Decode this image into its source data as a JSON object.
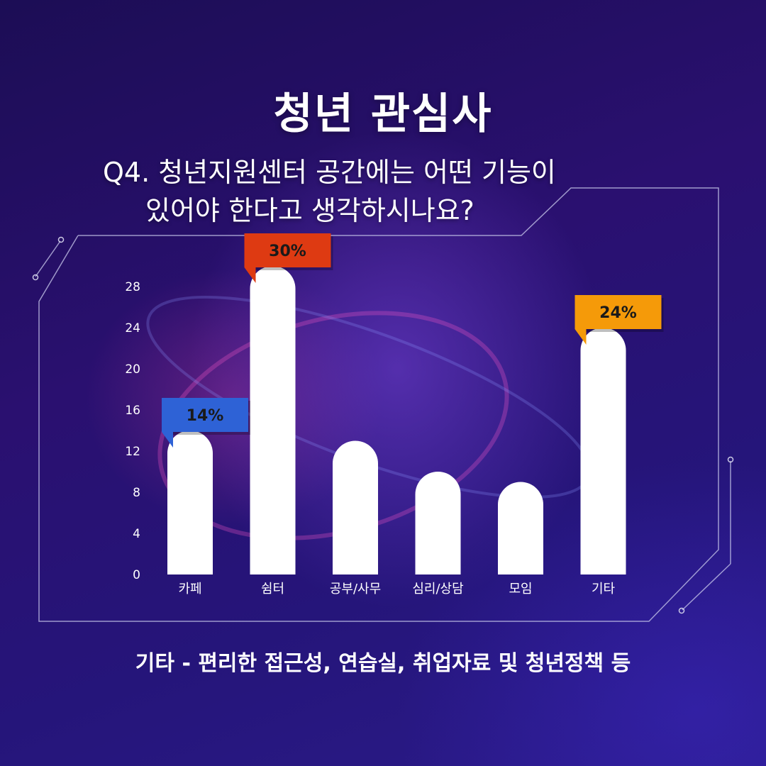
{
  "title": "청년 관심사",
  "question": {
    "line1": "Q4. 청년지원센터 공간에는 어떤 기능이",
    "line2": "있어야 한다고 생각하시나요?"
  },
  "footnote": "기타 - 편리한 접근성, 연습실, 취업자료 및 청년정책 등",
  "colors": {
    "bar": "#ffffff",
    "badge_cafe": "#2e62d6",
    "badge_shelter": "#de3a12",
    "badge_other": "#f59a09"
  },
  "chart_data": {
    "type": "bar",
    "categories": [
      "카페",
      "쉼터",
      "공부/사무",
      "심리/상담",
      "모임",
      "기타"
    ],
    "values": [
      14,
      30,
      13,
      10,
      9,
      24
    ],
    "ylim": [
      0,
      30
    ],
    "yticks": [
      0,
      4,
      8,
      12,
      16,
      20,
      24,
      28
    ],
    "data_labels": [
      {
        "category_index": 0,
        "text": "14%",
        "color": "#2e62d6"
      },
      {
        "category_index": 1,
        "text": "30%",
        "color": "#de3a12"
      },
      {
        "category_index": 5,
        "text": "24%",
        "color": "#f59a09"
      }
    ],
    "grid": false,
    "legend": "none"
  }
}
